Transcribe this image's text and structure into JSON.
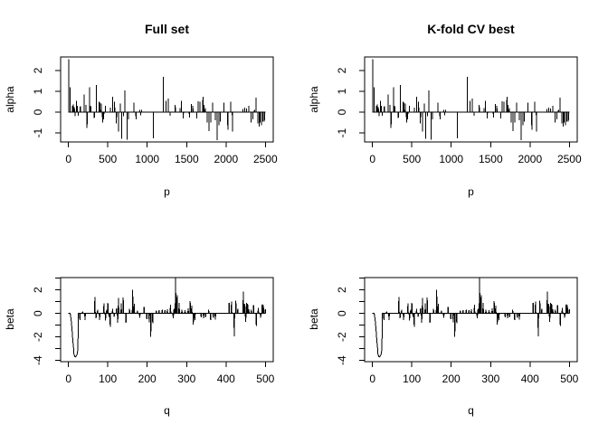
{
  "style": {
    "plot_color": "#000000",
    "background": "#ffffff"
  },
  "chart_data": [
    {
      "type": "spike-line",
      "title": "Full set",
      "xlabel": "p",
      "ylabel": "alpha",
      "xlim": [
        0,
        2500
      ],
      "ylim": [
        -1.43,
        2.65
      ],
      "baseline": 0,
      "grid": false,
      "legend": null,
      "xticks": [
        {
          "v": 0,
          "label": "0"
        },
        {
          "v": 500,
          "label": "500"
        },
        {
          "v": 1000,
          "label": "1000"
        },
        {
          "v": 1500,
          "label": "1500"
        },
        {
          "v": 2000,
          "label": "2000"
        },
        {
          "v": 2500,
          "label": "2500"
        }
      ],
      "yticks": [
        {
          "v": -1,
          "label": "-1"
        },
        {
          "v": 0,
          "label": "0"
        },
        {
          "v": 1,
          "label": "1"
        },
        {
          "v": 2,
          "label": "2"
        }
      ],
      "series_ref": "alpha"
    },
    {
      "type": "spike-line",
      "title": "K-fold CV best",
      "xlabel": "p",
      "ylabel": "alpha",
      "xlim": [
        0,
        2500
      ],
      "ylim": [
        -1.43,
        2.65
      ],
      "baseline": 0,
      "grid": false,
      "legend": null,
      "xticks": [
        {
          "v": 0,
          "label": "0"
        },
        {
          "v": 500,
          "label": "500"
        },
        {
          "v": 1000,
          "label": "1000"
        },
        {
          "v": 1500,
          "label": "1500"
        },
        {
          "v": 2000,
          "label": "2000"
        },
        {
          "v": 2500,
          "label": "2500"
        }
      ],
      "yticks": [
        {
          "v": -1,
          "label": "-1"
        },
        {
          "v": 0,
          "label": "0"
        },
        {
          "v": 1,
          "label": "1"
        },
        {
          "v": 2,
          "label": "2"
        }
      ],
      "series_ref": "alpha"
    },
    {
      "type": "spike-line",
      "title": "",
      "xlabel": "q",
      "ylabel": "beta",
      "xlim": [
        0,
        500
      ],
      "ylim": [
        -4.1,
        3.05
      ],
      "baseline": 0,
      "grid": false,
      "legend": null,
      "xticks": [
        {
          "v": 0,
          "label": "0"
        },
        {
          "v": 100,
          "label": "100"
        },
        {
          "v": 200,
          "label": "200"
        },
        {
          "v": 300,
          "label": "300"
        },
        {
          "v": 400,
          "label": "400"
        },
        {
          "v": 500,
          "label": "500"
        }
      ],
      "yticks": [
        {
          "v": -4,
          "label": "-4"
        },
        {
          "v": -3,
          "label": ""
        },
        {
          "v": -2,
          "label": "-2"
        },
        {
          "v": -1,
          "label": ""
        },
        {
          "v": 0,
          "label": "0"
        },
        {
          "v": 1,
          "label": ""
        },
        {
          "v": 2,
          "label": "2"
        },
        {
          "v": 3,
          "label": ""
        }
      ],
      "series_ref": "beta"
    },
    {
      "type": "spike-line",
      "title": "",
      "xlabel": "q",
      "ylabel": "beta",
      "xlim": [
        0,
        500
      ],
      "ylim": [
        -4.1,
        3.05
      ],
      "baseline": 0,
      "grid": false,
      "legend": null,
      "xticks": [
        {
          "v": 0,
          "label": "0"
        },
        {
          "v": 100,
          "label": "100"
        },
        {
          "v": 200,
          "label": "200"
        },
        {
          "v": 300,
          "label": "300"
        },
        {
          "v": 400,
          "label": "400"
        },
        {
          "v": 500,
          "label": "500"
        }
      ],
      "yticks": [
        {
          "v": -4,
          "label": "-4"
        },
        {
          "v": -3,
          "label": ""
        },
        {
          "v": -2,
          "label": "-2"
        },
        {
          "v": -1,
          "label": ""
        },
        {
          "v": 0,
          "label": "0"
        },
        {
          "v": 1,
          "label": ""
        },
        {
          "v": 2,
          "label": "2"
        },
        {
          "v": 3,
          "label": ""
        }
      ],
      "series_ref": "beta"
    }
  ],
  "series": {
    "alpha": [
      [
        5,
        2.55
      ],
      [
        20,
        1.2
      ],
      [
        50,
        0.3
      ],
      [
        62,
        0.38
      ],
      [
        75,
        0.25
      ],
      [
        85,
        -0.2
      ],
      [
        100,
        0.55
      ],
      [
        112,
        0.3
      ],
      [
        125,
        -0.18
      ],
      [
        150,
        0.28
      ],
      [
        198,
        0.85
      ],
      [
        220,
        0.35
      ],
      [
        236,
        -0.75
      ],
      [
        266,
        1.2
      ],
      [
        282,
        0.3
      ],
      [
        328,
        -0.28
      ],
      [
        354,
        1.3
      ],
      [
        388,
        0.5
      ],
      [
        400,
        0.45
      ],
      [
        415,
        0.42
      ],
      [
        432,
        -0.5
      ],
      [
        448,
        -0.35
      ],
      [
        470,
        0.3
      ],
      [
        530,
        0.22
      ],
      [
        560,
        0.75
      ],
      [
        586,
        0.5
      ],
      [
        609,
        -0.55
      ],
      [
        636,
        -0.92
      ],
      [
        659,
        0.42
      ],
      [
        677,
        -1.28
      ],
      [
        700,
        -0.2
      ],
      [
        716,
        1.05
      ],
      [
        743,
        -1.32
      ],
      [
        760,
        -0.35
      ],
      [
        831,
        0.45
      ],
      [
        857,
        -0.35
      ],
      [
        905,
        0.12
      ],
      [
        918,
        -0.15
      ],
      [
        930,
        0.1
      ],
      [
        1078,
        -1.25
      ],
      [
        1203,
        1.7
      ],
      [
        1238,
        0.55
      ],
      [
        1269,
        0.65
      ],
      [
        1290,
        -0.18
      ],
      [
        1356,
        0.35
      ],
      [
        1415,
        0.2
      ],
      [
        1432,
        0.55
      ],
      [
        1459,
        -0.3
      ],
      [
        1535,
        -0.25
      ],
      [
        1562,
        0.4
      ],
      [
        1580,
        0.3
      ],
      [
        1628,
        -0.3
      ],
      [
        1648,
        0.52
      ],
      [
        1669,
        0.5
      ],
      [
        1707,
        0.75
      ],
      [
        1721,
        0.35
      ],
      [
        1736,
        0.2
      ],
      [
        1762,
        -0.5
      ],
      [
        1785,
        -0.9
      ],
      [
        1808,
        -0.5
      ],
      [
        1832,
        0.45
      ],
      [
        1864,
        -0.38
      ],
      [
        1889,
        -1.35
      ],
      [
        1910,
        -0.62
      ],
      [
        1928,
        -0.45
      ],
      [
        1973,
        0.45
      ],
      [
        2023,
        -0.85
      ],
      [
        2061,
        0.5
      ],
      [
        2081,
        -0.92
      ],
      [
        2217,
        0.15
      ],
      [
        2240,
        0.22
      ],
      [
        2263,
        0.18
      ],
      [
        2289,
        0.3
      ],
      [
        2317,
        -0.5
      ],
      [
        2340,
        -0.35
      ],
      [
        2362,
        0.12
      ],
      [
        2381,
        0.7
      ],
      [
        2404,
        -0.55
      ],
      [
        2420,
        -0.7
      ],
      [
        2435,
        -0.5
      ],
      [
        2450,
        -0.62
      ],
      [
        2469,
        -0.45
      ],
      [
        2488,
        -0.45
      ]
    ],
    "beta": [
      [
        5,
        -0.12
      ],
      [
        6,
        -0.35
      ],
      [
        7,
        -0.65
      ],
      [
        8,
        -1.0
      ],
      [
        9,
        -1.4
      ],
      [
        10,
        -1.85
      ],
      [
        11,
        -2.3
      ],
      [
        12,
        -2.65
      ],
      [
        13,
        -3.0
      ],
      [
        14,
        -3.5
      ],
      [
        15,
        -3.58
      ],
      [
        16,
        -3.64
      ],
      [
        17,
        -3.7
      ],
      [
        18,
        -3.68
      ],
      [
        19,
        -3.64
      ],
      [
        20,
        -3.6
      ],
      [
        21,
        -3.55
      ],
      [
        22,
        -3.45
      ],
      [
        23,
        -3.25
      ],
      [
        24,
        -2.9
      ],
      [
        29,
        -0.55
      ],
      [
        36,
        0.15
      ],
      [
        42,
        -0.55
      ],
      [
        67,
        1.4
      ],
      [
        70,
        -0.42
      ],
      [
        74,
        0.3
      ],
      [
        79,
        -0.55
      ],
      [
        90,
        0.85
      ],
      [
        94,
        -0.6
      ],
      [
        97,
        0.32
      ],
      [
        100,
        0.9
      ],
      [
        103,
        -0.28
      ],
      [
        106,
        -1.15
      ],
      [
        112,
        0.38
      ],
      [
        116,
        -0.28
      ],
      [
        122,
        0.45
      ],
      [
        125,
        -0.78
      ],
      [
        127,
        1.3
      ],
      [
        134,
        0.85
      ],
      [
        139,
        1.35
      ],
      [
        146,
        -0.8
      ],
      [
        155,
        0.38
      ],
      [
        163,
        2.0
      ],
      [
        167,
        0.82
      ],
      [
        175,
        0.22
      ],
      [
        181,
        -0.38
      ],
      [
        192,
        0.55
      ],
      [
        199,
        -0.5
      ],
      [
        205,
        -0.75
      ],
      [
        209,
        -2.0
      ],
      [
        214,
        -0.85
      ],
      [
        223,
        0.22
      ],
      [
        230,
        0.28
      ],
      [
        238,
        0.3
      ],
      [
        245,
        0.28
      ],
      [
        251,
        0.35
      ],
      [
        259,
        0.75
      ],
      [
        266,
        -0.4
      ],
      [
        268,
        0.4
      ],
      [
        272,
        3.05
      ],
      [
        276,
        1.55
      ],
      [
        281,
        0.9
      ],
      [
        288,
        0.32
      ],
      [
        296,
        0.28
      ],
      [
        304,
        0.45
      ],
      [
        309,
        1.05
      ],
      [
        313,
        0.68
      ],
      [
        317,
        -0.95
      ],
      [
        321,
        -0.58
      ],
      [
        337,
        -0.32
      ],
      [
        343,
        -0.42
      ],
      [
        348,
        -0.32
      ],
      [
        356,
        0.3
      ],
      [
        361,
        -0.58
      ],
      [
        368,
        -0.38
      ],
      [
        373,
        -0.52
      ],
      [
        408,
        0.9
      ],
      [
        414,
        1.0
      ],
      [
        421,
        -1.95
      ],
      [
        425,
        1.1
      ],
      [
        430,
        0.38
      ],
      [
        444,
        1.85
      ],
      [
        447,
        0.82
      ],
      [
        450,
        -0.72
      ],
      [
        452,
        0.88
      ],
      [
        455,
        0.82
      ],
      [
        458,
        0.35
      ],
      [
        464,
        0.3
      ],
      [
        470,
        0.72
      ],
      [
        477,
        -1.05
      ],
      [
        482,
        0.48
      ],
      [
        488,
        -0.38
      ],
      [
        492,
        0.78
      ],
      [
        495,
        0.72
      ],
      [
        500,
        0.35
      ]
    ]
  }
}
